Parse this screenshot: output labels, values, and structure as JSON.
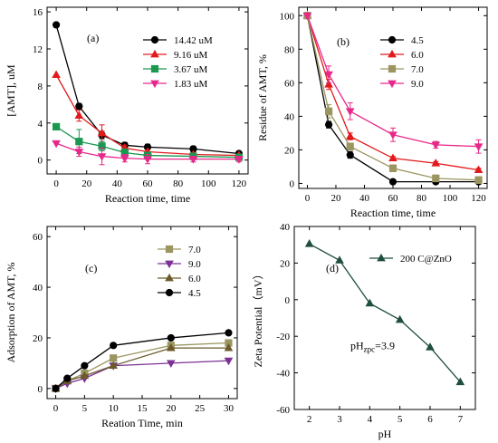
{
  "chart_data": [
    {
      "type": "line",
      "panel_label": "(a)",
      "xlabel": "Reaction time, time",
      "ylabel": "[AMT], uM",
      "xlim": [
        -6,
        126
      ],
      "ylim": [
        -1.5,
        16.5
      ],
      "xticks": [
        0,
        20,
        40,
        60,
        80,
        100,
        120
      ],
      "yticks": [
        0,
        4,
        8,
        12,
        16
      ],
      "legend_position": "top-right",
      "series": [
        {
          "name": "14.42 uM",
          "color": "#000000",
          "marker": "circle",
          "x": [
            0,
            15,
            30,
            45,
            60,
            90,
            120
          ],
          "y": [
            14.6,
            5.8,
            2.7,
            1.6,
            1.4,
            1.2,
            0.7
          ],
          "err": [
            0,
            0.3,
            0.4,
            0.3,
            0.3,
            0.3,
            0.2
          ]
        },
        {
          "name": "9.16 uM",
          "color": "#e31a1c",
          "marker": "triangle-up",
          "x": [
            0,
            15,
            30,
            45,
            60,
            90,
            120
          ],
          "y": [
            9.2,
            4.8,
            2.9,
            1.3,
            0.9,
            0.6,
            0.5
          ],
          "err": [
            0,
            0.6,
            0.9,
            0.3,
            0.2,
            0.2,
            0.1
          ]
        },
        {
          "name": "3.67 uM",
          "color": "#1a9850",
          "marker": "square",
          "x": [
            0,
            15,
            30,
            45,
            60,
            90,
            120
          ],
          "y": [
            3.6,
            2.0,
            1.5,
            0.8,
            0.5,
            0.4,
            0.3
          ],
          "err": [
            0,
            1.3,
            0.5,
            0.4,
            0.3,
            0.2,
            0.2
          ]
        },
        {
          "name": "1.83 uM",
          "color": "#e7298a",
          "marker": "triangle-down",
          "x": [
            0,
            15,
            30,
            45,
            60,
            90,
            120
          ],
          "y": [
            1.8,
            0.9,
            0.4,
            0.2,
            0.1,
            0.1,
            0.1
          ],
          "err": [
            0,
            0.5,
            0.9,
            0.4,
            0.5,
            0.3,
            0.3
          ]
        }
      ]
    },
    {
      "type": "line",
      "panel_label": "(b)",
      "xlabel": "Reaction time, time",
      "ylabel": "Residue of AMT, %",
      "xlim": [
        -6,
        126
      ],
      "ylim": [
        -3,
        105
      ],
      "xticks": [
        0,
        20,
        40,
        60,
        80,
        100,
        120
      ],
      "yticks": [
        0,
        20,
        40,
        60,
        80,
        100
      ],
      "legend_position": "top-right",
      "series": [
        {
          "name": "4.5",
          "color": "#000000",
          "marker": "circle",
          "x": [
            0,
            15,
            30,
            60,
            90,
            120
          ],
          "y": [
            100,
            35,
            17,
            1,
            1,
            1
          ],
          "err": [
            0,
            2,
            2,
            1,
            1,
            1
          ]
        },
        {
          "name": "6.0",
          "color": "#e31a1c",
          "marker": "triangle-up",
          "x": [
            0,
            15,
            30,
            60,
            90,
            120
          ],
          "y": [
            100,
            59,
            28,
            15,
            12,
            8
          ],
          "err": [
            0,
            3,
            2,
            1,
            1,
            1
          ]
        },
        {
          "name": "7.0",
          "color": "#9b9560",
          "marker": "square",
          "x": [
            0,
            15,
            30,
            60,
            90,
            120
          ],
          "y": [
            100,
            43,
            22,
            9,
            3,
            2
          ],
          "err": [
            0,
            4,
            2,
            2,
            2,
            2
          ]
        },
        {
          "name": "9.0",
          "color": "#e7298a",
          "marker": "triangle-down",
          "x": [
            0,
            15,
            30,
            60,
            90,
            120
          ],
          "y": [
            100,
            65,
            43,
            29,
            23,
            22
          ],
          "err": [
            0,
            5,
            5,
            4,
            2,
            4
          ]
        }
      ]
    },
    {
      "type": "line",
      "panel_label": "(c)",
      "xlabel": "Reation Time, min",
      "ylabel": "Adsorption of AMT, %",
      "xlim": [
        -1.5,
        31.5
      ],
      "ylim": [
        -4,
        64
      ],
      "xticks": [
        0,
        5,
        10,
        15,
        20,
        25,
        30
      ],
      "yticks": [
        0,
        20,
        40,
        60
      ],
      "legend_position": "top-right",
      "series": [
        {
          "name": "7.0",
          "color": "#9b9560",
          "marker": "square",
          "x": [
            0,
            2,
            5,
            10,
            20,
            30
          ],
          "y": [
            0,
            3,
            6,
            12,
            17,
            18
          ]
        },
        {
          "name": "9.0",
          "color": "#7b3294",
          "marker": "triangle-down",
          "x": [
            0,
            2,
            5,
            10,
            20,
            30
          ],
          "y": [
            0,
            2,
            4,
            9,
            10,
            11
          ]
        },
        {
          "name": "6.0",
          "color": "#6b5a2a",
          "marker": "triangle-up",
          "x": [
            0,
            2,
            5,
            10,
            20,
            30
          ],
          "y": [
            0,
            3,
            5,
            9,
            16,
            16
          ]
        },
        {
          "name": "4.5",
          "color": "#000000",
          "marker": "circle",
          "x": [
            0,
            2,
            5,
            10,
            20,
            30
          ],
          "y": [
            0,
            4,
            9,
            17,
            20,
            22
          ]
        }
      ]
    },
    {
      "type": "line",
      "panel_label": "(d)",
      "xlabel": "pH",
      "ylabel": "Zeta Potential（mV）",
      "xlim": [
        1.5,
        7.5
      ],
      "ylim": [
        -60,
        40
      ],
      "xticks": [
        2,
        3,
        4,
        5,
        6,
        7
      ],
      "yticks": [
        -60,
        -40,
        -20,
        0,
        20,
        40
      ],
      "legend_position": "top-right",
      "annotation": {
        "main": "pH",
        "sub": "zpc",
        "tail": "=3.9",
        "x": 3.9,
        "y": -27
      },
      "series": [
        {
          "name": "200 C@ZnO",
          "color": "#1f4e3d",
          "marker": "triangle-up",
          "x": [
            2,
            3,
            4,
            5,
            6,
            7
          ],
          "y": [
            30.5,
            21.5,
            -2,
            -11,
            -26,
            -45
          ]
        }
      ]
    }
  ]
}
